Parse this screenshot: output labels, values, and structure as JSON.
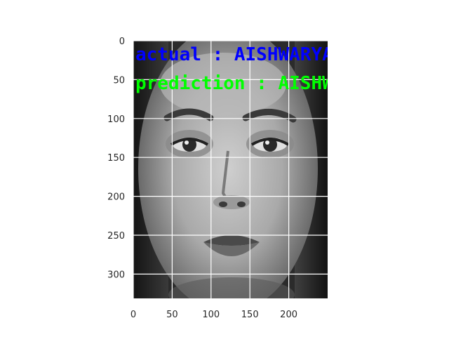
{
  "image_panel": {
    "x_ticks": [
      "0",
      "50",
      "100",
      "150",
      "200"
    ],
    "y_ticks": [
      "0",
      "50",
      "100",
      "150",
      "200",
      "250",
      "300"
    ],
    "grid": true,
    "colors": {
      "grid": "#ffffff",
      "tick_text": "#262626"
    }
  },
  "overlay": {
    "actual_text": "actual : AISHWARYA",
    "prediction_text": "prediction : AISHWA",
    "actual_color": "#0000ff",
    "prediction_color": "#00ff00"
  }
}
